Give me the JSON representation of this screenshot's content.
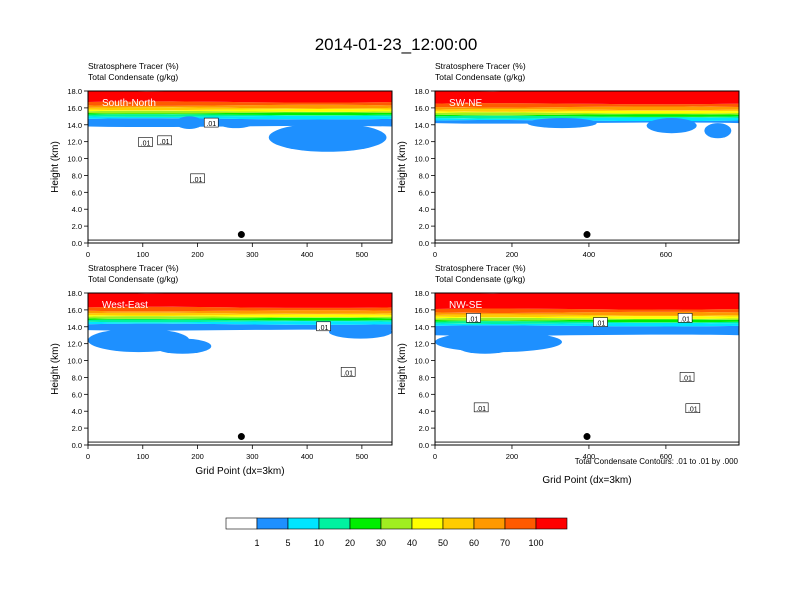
{
  "title": "2014-01-23_12:00:00",
  "contour_note": "Total Condensate Contours: .01 to .01 by .000",
  "colors": [
    "#ffffff",
    "#1e90ff",
    "#00e5ff",
    "#00f2a0",
    "#00ee00",
    "#a0ee20",
    "#ffff00",
    "#ffcc00",
    "#ff9900",
    "#ff5a00",
    "#ff0000"
  ],
  "colorbar": {
    "labels": [
      "1",
      "5",
      "10",
      "20",
      "30",
      "40",
      "50",
      "60",
      "70",
      "100"
    ]
  },
  "chart_data": [
    {
      "type": "heatmap",
      "panel_label": "South-North",
      "title_line1": "Stratosphere Tracer   (%)",
      "title_line2": "Total Condensate   (g/kg)",
      "ylabel": "Height (km)",
      "xlabel": "",
      "xlim": [
        0,
        555
      ],
      "ylim": [
        0,
        18
      ],
      "xticks": [
        "0",
        "100",
        "200",
        "300",
        "400",
        "500"
      ],
      "yticks": [
        "0.0",
        "2.0",
        "4.0",
        "6.0",
        "8.0",
        "10.0",
        "12.0",
        "14.0",
        "16.0",
        "18.0"
      ],
      "base_km": 15.2,
      "blue_base_km": 13.8,
      "blue_blobs": [
        {
          "x": [
            160,
            210
          ],
          "y": [
            13.5,
            15.0
          ]
        },
        {
          "x": [
            240,
            300
          ],
          "y": [
            13.6,
            14.6
          ]
        },
        {
          "x": [
            330,
            545
          ],
          "y": [
            10.8,
            14.2
          ]
        }
      ],
      "contour_labels": [
        {
          "text": ".01",
          "x": 105,
          "y": 11.9
        },
        {
          "text": ".01",
          "x": 140,
          "y": 12.1
        },
        {
          "text": ".01",
          "x": 200,
          "y": 7.6
        },
        {
          "text": ".01",
          "x": 225,
          "y": 14.2
        }
      ],
      "marker": {
        "x": 280,
        "y": 1.0
      }
    },
    {
      "type": "heatmap",
      "panel_label": "SW-NE",
      "title_line1": "Stratosphere Tracer   (%)",
      "title_line2": "Total Condensate   (g/kg)",
      "ylabel": "Height (km)",
      "xlabel": "",
      "xlim": [
        0,
        790
      ],
      "ylim": [
        0,
        18
      ],
      "xticks": [
        "0",
        "200",
        "400",
        "600"
      ],
      "yticks": [
        "0.0",
        "2.0",
        "4.0",
        "6.0",
        "8.0",
        "10.0",
        "12.0",
        "14.0",
        "16.0",
        "18.0"
      ],
      "base_km": 15.0,
      "blue_base_km": 14.2,
      "blue_blobs": [
        {
          "x": [
            240,
            420
          ],
          "y": [
            13.6,
            14.8
          ]
        },
        {
          "x": [
            550,
            680
          ],
          "y": [
            13.0,
            14.8
          ]
        },
        {
          "x": [
            700,
            770
          ],
          "y": [
            12.4,
            14.2
          ]
        }
      ],
      "contour_labels": [],
      "marker": {
        "x": 395,
        "y": 1.0
      }
    },
    {
      "type": "heatmap",
      "panel_label": "West-East",
      "title_line1": "Stratosphere Tracer   (%)",
      "title_line2": "Total Condensate   (g/kg)",
      "ylabel": "Height (km)",
      "xlabel": "Grid Point (dx=3km)",
      "xlim": [
        0,
        555
      ],
      "ylim": [
        0,
        18
      ],
      "xticks": [
        "0",
        "100",
        "200",
        "300",
        "400",
        "500"
      ],
      "yticks": [
        "0.0",
        "2.0",
        "4.0",
        "6.0",
        "8.0",
        "10.0",
        "12.0",
        "14.0",
        "16.0",
        "18.0"
      ],
      "base_km": 14.8,
      "blue_base_km": 13.6,
      "blue_blobs": [
        {
          "x": [
            0,
            185
          ],
          "y": [
            11.0,
            13.8
          ]
        },
        {
          "x": [
            120,
            225
          ],
          "y": [
            10.8,
            12.6
          ]
        },
        {
          "x": [
            440,
            555
          ],
          "y": [
            12.6,
            14.2
          ]
        }
      ],
      "contour_labels": [
        {
          "text": ".01",
          "x": 430,
          "y": 14.0
        },
        {
          "text": ".01",
          "x": 475,
          "y": 8.6
        }
      ],
      "marker": {
        "x": 280,
        "y": 1.0
      }
    },
    {
      "type": "heatmap",
      "panel_label": "NW-SE",
      "title_line1": "Stratosphere Tracer   (%)",
      "title_line2": "Total Condensate   (g/kg)",
      "ylabel": "Height (km)",
      "xlabel": "Grid Point (dx=3km)",
      "xlim": [
        0,
        790
      ],
      "ylim": [
        0,
        18
      ],
      "xticks": [
        "0",
        "200",
        "400",
        "600"
      ],
      "yticks": [
        "0.0",
        "2.0",
        "4.0",
        "6.0",
        "8.0",
        "10.0",
        "12.0",
        "14.0",
        "16.0",
        "18.0"
      ],
      "base_km": 14.6,
      "blue_base_km": 13.0,
      "blue_blobs": [
        {
          "x": [
            0,
            330
          ],
          "y": [
            11.0,
            13.4
          ]
        },
        {
          "x": [
            60,
            200
          ],
          "y": [
            10.8,
            12.4
          ]
        }
      ],
      "contour_labels": [
        {
          "text": ".01",
          "x": 100,
          "y": 15.0
        },
        {
          "text": ".01",
          "x": 430,
          "y": 14.5
        },
        {
          "text": ".01",
          "x": 655,
          "y": 8.0
        },
        {
          "text": ".01",
          "x": 120,
          "y": 4.4
        },
        {
          "text": ".01",
          "x": 670,
          "y": 4.3
        },
        {
          "text": ".01",
          "x": 650,
          "y": 15.0
        }
      ],
      "marker": {
        "x": 395,
        "y": 1.0
      }
    }
  ]
}
